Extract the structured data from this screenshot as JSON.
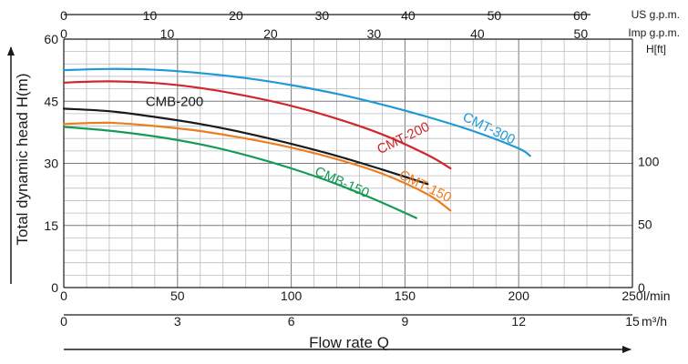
{
  "chart_data": {
    "type": "line",
    "ylabel": "Total dynamic head H(m)",
    "xlabel": "Flow rate Q",
    "x_unit_primary": "l/min",
    "x_unit_secondary": "m³/h",
    "top_axis_1_unit": "US g.p.m.",
    "top_axis_2_unit": "Imp g.p.m.",
    "right_axis_unit": "H[ft]",
    "xlim": [
      0,
      250
    ],
    "ylim": [
      0,
      60
    ],
    "x_ticks_lpm": [
      "0",
      "50",
      "100",
      "150",
      "200",
      "250"
    ],
    "x_ticks_m3h": [
      "0",
      "3",
      "6",
      "9",
      "12",
      "15"
    ],
    "y_ticks": [
      "0",
      "15",
      "30",
      "45",
      "60"
    ],
    "right_ticks": [
      "0",
      "50",
      "100"
    ],
    "top_ticks_us": [
      "0",
      "10",
      "20",
      "30",
      "40",
      "50",
      "60"
    ],
    "top_ticks_imp": [
      "0",
      "10",
      "20",
      "30",
      "40",
      "50"
    ],
    "grid": true,
    "series": [
      {
        "name": "CMT-300",
        "color": "#1e9ad6",
        "x": [
          0,
          20,
          40,
          60,
          80,
          100,
          120,
          140,
          160,
          180,
          200,
          205
        ],
        "y": [
          52.5,
          52.8,
          52.6,
          51.8,
          50.6,
          48.9,
          46.8,
          44.2,
          41.2,
          37.8,
          33.6,
          31.8
        ]
      },
      {
        "name": "CMT-200",
        "color": "#d0262d",
        "x": [
          0,
          20,
          40,
          60,
          80,
          100,
          120,
          140,
          160,
          170
        ],
        "y": [
          49.5,
          49.8,
          49.4,
          48.2,
          46.3,
          43.9,
          40.8,
          37.0,
          32.0,
          28.8
        ]
      },
      {
        "name": "CMB-200",
        "color": "#1a1a1a",
        "x": [
          0,
          20,
          40,
          60,
          80,
          100,
          120,
          140,
          160
        ],
        "y": [
          43.2,
          42.6,
          41.2,
          39.5,
          37.3,
          34.7,
          31.8,
          28.5,
          25.0
        ]
      },
      {
        "name": "CMT-150",
        "color": "#ee7d1e",
        "x": [
          0,
          20,
          40,
          60,
          80,
          100,
          120,
          140,
          160,
          170
        ],
        "y": [
          39.5,
          39.8,
          39.0,
          37.8,
          36.0,
          33.8,
          31.0,
          27.5,
          22.5,
          18.6
        ]
      },
      {
        "name": "CMB-150",
        "color": "#169a55",
        "x": [
          0,
          20,
          40,
          60,
          80,
          100,
          120,
          140,
          155
        ],
        "y": [
          38.8,
          37.9,
          36.5,
          34.6,
          32.0,
          28.8,
          25.0,
          20.5,
          16.8
        ]
      }
    ]
  }
}
